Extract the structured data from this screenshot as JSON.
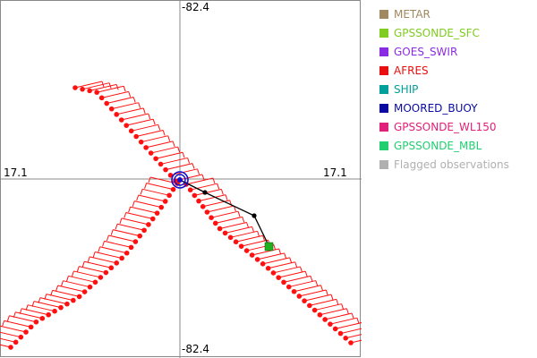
{
  "axes": {
    "top_label": "-82.4",
    "bottom_label": "-82.4",
    "left_label": "17.1",
    "right_label": "17.1"
  },
  "legend": {
    "items": [
      {
        "label": "METAR",
        "color": "#a08860"
      },
      {
        "label": "GPSSONDE_SFC",
        "color": "#80cc20"
      },
      {
        "label": "GOES_SWIR",
        "color": "#8b2be2"
      },
      {
        "label": "AFRES",
        "color": "#e81010"
      },
      {
        "label": "SHIP",
        "color": "#00a09a"
      },
      {
        "label": "MOORED_BUOY",
        "color": "#0a0aa0"
      },
      {
        "label": "GPSSONDE_WL150",
        "color": "#e0207a"
      },
      {
        "label": "GPSSONDE_MBL",
        "color": "#20d070"
      },
      {
        "label": "Flagged observations",
        "color": "#b0b0b0"
      }
    ]
  },
  "plot_colors": {
    "afres": "#ff1010",
    "track": "#000000",
    "center": "#1010d0",
    "sonde": "#20b020"
  }
}
